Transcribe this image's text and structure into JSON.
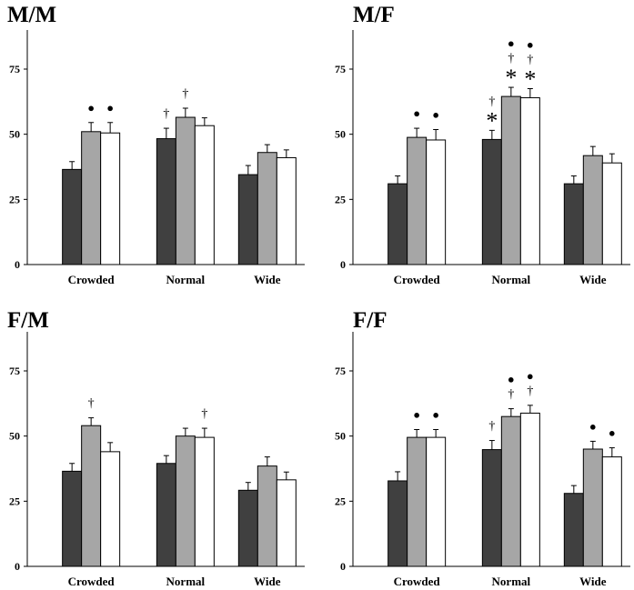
{
  "colors": {
    "dark": "#404040",
    "gray": "#a6a6a6",
    "white": "#ffffff",
    "axis": "#000000"
  },
  "chart_data": [
    {
      "type": "bar",
      "title": "M/M",
      "categories": [
        "Crowded",
        "Normal",
        "Wide"
      ],
      "ylim": [
        0,
        90
      ],
      "yticks": [
        "0",
        "25",
        "50",
        "75"
      ],
      "series": [
        {
          "name": "dark",
          "values": [
            36.5,
            48.3,
            34.5
          ],
          "errors": [
            3,
            4,
            3.5
          ]
        },
        {
          "name": "gray",
          "values": [
            51,
            56.5,
            43
          ],
          "errors": [
            3.5,
            3.5,
            3
          ]
        },
        {
          "name": "white",
          "values": [
            50.5,
            53.3,
            41
          ],
          "errors": [
            4,
            3,
            3
          ]
        }
      ],
      "annotations": [
        {
          "category": 0,
          "series": 1,
          "marks": [
            "●"
          ]
        },
        {
          "category": 0,
          "series": 2,
          "marks": [
            "●"
          ]
        },
        {
          "category": 1,
          "series": 0,
          "marks": [
            "†"
          ]
        },
        {
          "category": 1,
          "series": 1,
          "marks": [
            "†"
          ]
        }
      ]
    },
    {
      "type": "bar",
      "title": "M/F",
      "categories": [
        "Crowded",
        "Normal",
        "Wide"
      ],
      "ylim": [
        0,
        90
      ],
      "yticks": [
        "0",
        "25",
        "50",
        "75"
      ],
      "series": [
        {
          "name": "dark",
          "values": [
            31,
            48,
            31
          ],
          "errors": [
            3,
            3.5,
            3
          ]
        },
        {
          "name": "gray",
          "values": [
            48.8,
            64.5,
            41.8
          ],
          "errors": [
            3.5,
            3.5,
            3.5
          ]
        },
        {
          "name": "white",
          "values": [
            47.8,
            64,
            39
          ],
          "errors": [
            4,
            3.5,
            3.5
          ]
        }
      ],
      "annotations": [
        {
          "category": 0,
          "series": 1,
          "marks": [
            "●"
          ]
        },
        {
          "category": 0,
          "series": 2,
          "marks": [
            "●"
          ]
        },
        {
          "category": 1,
          "series": 0,
          "marks": [
            "*",
            "†"
          ]
        },
        {
          "category": 1,
          "series": 1,
          "marks": [
            "*",
            "†",
            "●"
          ]
        },
        {
          "category": 1,
          "series": 2,
          "marks": [
            "*",
            "†",
            "●"
          ]
        }
      ]
    },
    {
      "type": "bar",
      "title": "F/M",
      "categories": [
        "Crowded",
        "Normal",
        "Wide"
      ],
      "ylim": [
        0,
        90
      ],
      "yticks": [
        "0",
        "25",
        "50",
        "75"
      ],
      "series": [
        {
          "name": "dark",
          "values": [
            36.5,
            39.5,
            29.2
          ],
          "errors": [
            3,
            3,
            3
          ]
        },
        {
          "name": "gray",
          "values": [
            54,
            50,
            38.5
          ],
          "errors": [
            3,
            3,
            3.5
          ]
        },
        {
          "name": "white",
          "values": [
            44,
            49.5,
            33.2
          ],
          "errors": [
            3.5,
            3.5,
            3
          ]
        }
      ],
      "annotations": [
        {
          "category": 0,
          "series": 1,
          "marks": [
            "†"
          ]
        },
        {
          "category": 1,
          "series": 2,
          "marks": [
            "†"
          ]
        }
      ]
    },
    {
      "type": "bar",
      "title": "F/F",
      "categories": [
        "Crowded",
        "Normal",
        "Wide"
      ],
      "ylim": [
        0,
        90
      ],
      "yticks": [
        "0",
        "25",
        "50",
        "75"
      ],
      "series": [
        {
          "name": "dark",
          "values": [
            32.8,
            44.8,
            28
          ],
          "errors": [
            3.5,
            3.5,
            3
          ]
        },
        {
          "name": "gray",
          "values": [
            49.5,
            57.5,
            45
          ],
          "errors": [
            3,
            3,
            3
          ]
        },
        {
          "name": "white",
          "values": [
            49.5,
            58.8,
            42
          ],
          "errors": [
            3,
            3,
            3.5
          ]
        }
      ],
      "annotations": [
        {
          "category": 0,
          "series": 1,
          "marks": [
            "●"
          ]
        },
        {
          "category": 0,
          "series": 2,
          "marks": [
            "●"
          ]
        },
        {
          "category": 1,
          "series": 0,
          "marks": [
            "†"
          ]
        },
        {
          "category": 1,
          "series": 1,
          "marks": [
            "†",
            "●"
          ]
        },
        {
          "category": 1,
          "series": 2,
          "marks": [
            "†",
            "●"
          ]
        },
        {
          "category": 2,
          "series": 1,
          "marks": [
            "●"
          ]
        },
        {
          "category": 2,
          "series": 2,
          "marks": [
            "●"
          ]
        }
      ]
    }
  ]
}
